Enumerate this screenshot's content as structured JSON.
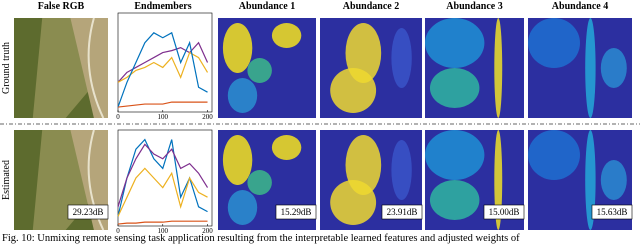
{
  "columns": [
    "False RGB",
    "Endmembers",
    "Abundance 1",
    "Abundance 2",
    "Abundance 3",
    "Abundance 4"
  ],
  "row_labels": [
    "Ground truth",
    "Estimated"
  ],
  "psnr": [
    "29.23dB",
    "15.29dB",
    "23.91dB",
    "15.00dB",
    "15.63dB"
  ],
  "caption": "Fig. 10: Unmixing remote sensing task application resulting from the interpretable learned features and adjusted weights of",
  "chart_data": [
    {
      "type": "line",
      "x": [
        0,
        20,
        40,
        60,
        80,
        100,
        120,
        140,
        160,
        180,
        200
      ],
      "xlim": [
        0,
        210
      ],
      "xticks": [
        0,
        100,
        200
      ],
      "ylim": [
        0,
        1
      ],
      "series": [
        {
          "color": "#7e2f8e",
          "values": [
            0.3,
            0.4,
            0.45,
            0.5,
            0.55,
            0.6,
            0.62,
            0.65,
            0.6,
            0.7,
            0.5
          ]
        },
        {
          "color": "#edb120",
          "values": [
            0.3,
            0.35,
            0.42,
            0.45,
            0.5,
            0.45,
            0.55,
            0.35,
            0.6,
            0.55,
            0.4
          ]
        },
        {
          "color": "#0072bd",
          "values": [
            0.05,
            0.3,
            0.5,
            0.7,
            0.8,
            0.75,
            0.8,
            0.5,
            0.7,
            0.25,
            0.2
          ]
        },
        {
          "color": "#d95319",
          "values": [
            0.05,
            0.06,
            0.07,
            0.08,
            0.08,
            0.08,
            0.1,
            0.1,
            0.1,
            0.1,
            0.1
          ]
        }
      ]
    },
    {
      "type": "line",
      "x": [
        0,
        20,
        40,
        60,
        80,
        100,
        120,
        140,
        160,
        180,
        200
      ],
      "xlim": [
        0,
        210
      ],
      "xticks": [
        0,
        100,
        200
      ],
      "ylim": [
        0,
        1
      ],
      "series": [
        {
          "color": "#0072bd",
          "values": [
            0.1,
            0.5,
            0.8,
            0.9,
            0.7,
            0.6,
            0.9,
            0.3,
            0.5,
            0.2,
            0.15
          ]
        },
        {
          "color": "#7e2f8e",
          "values": [
            0.2,
            0.5,
            0.7,
            0.85,
            0.75,
            0.7,
            0.8,
            0.6,
            0.65,
            0.55,
            0.4
          ]
        },
        {
          "color": "#edb120",
          "values": [
            0.1,
            0.3,
            0.5,
            0.6,
            0.5,
            0.4,
            0.55,
            0.2,
            0.5,
            0.35,
            0.3
          ]
        },
        {
          "color": "#d95319",
          "values": [
            0.02,
            0.03,
            0.03,
            0.04,
            0.04,
            0.04,
            0.05,
            0.05,
            0.05,
            0.05,
            0.05
          ]
        }
      ]
    }
  ]
}
